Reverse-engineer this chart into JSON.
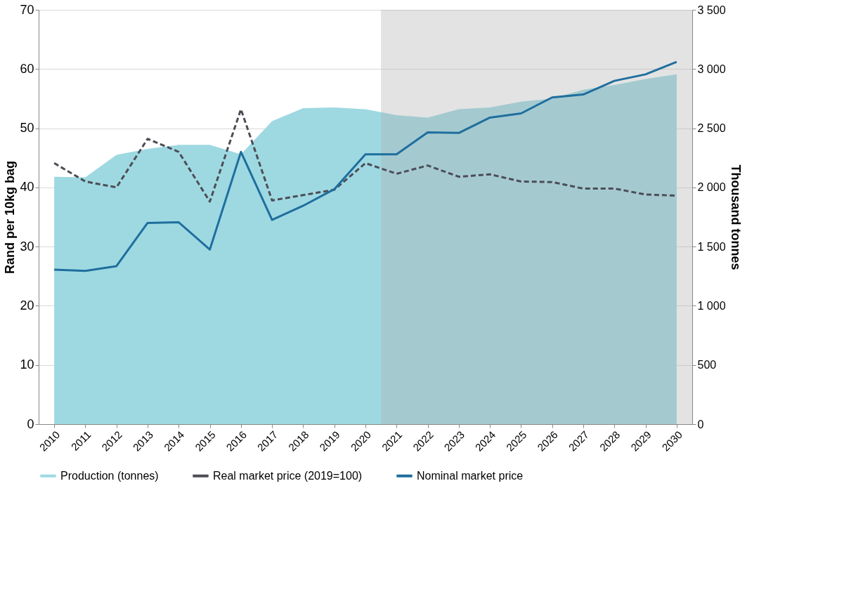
{
  "chart_data": {
    "type": "line",
    "x": [
      2010,
      2011,
      2012,
      2013,
      2014,
      2015,
      2016,
      2017,
      2018,
      2019,
      2020,
      2021,
      2022,
      2023,
      2024,
      2025,
      2026,
      2027,
      2028,
      2029,
      2030
    ],
    "xlim": [
      2009.5,
      2030.5
    ],
    "xticks": [
      2010,
      2011,
      2012,
      2013,
      2014,
      2015,
      2016,
      2017,
      2018,
      2019,
      2020,
      2021,
      2022,
      2023,
      2024,
      2025,
      2026,
      2027,
      2028,
      2029,
      2030
    ],
    "ylabel": "Rand per 10kg bag",
    "y2label": "Thousand tonnes",
    "ylim": [
      0,
      70
    ],
    "yticks": [
      0,
      10,
      20,
      30,
      40,
      50,
      60,
      70
    ],
    "y2lim": [
      0,
      3500
    ],
    "y2ticks": [
      0,
      500,
      {
        "value": 1000,
        "label": "1 000"
      },
      {
        "value": 1500,
        "label": "1 500"
      },
      {
        "value": 2000,
        "label": "2 000"
      },
      {
        "value": 2500,
        "label": "2 500"
      },
      {
        "value": 3000,
        "label": "3 000"
      },
      {
        "value": 3500,
        "label": "3 500"
      }
    ],
    "series": [
      {
        "name": "Production (tonnes)",
        "type": "area",
        "axis": "y2",
        "color": "#9ed9e2",
        "values": [
          2090,
          2085,
          2275,
          2325,
          2360,
          2360,
          2280,
          2560,
          2670,
          2675,
          2660,
          2610,
          2590,
          2660,
          2675,
          2725,
          2750,
          2825,
          2865,
          2915,
          2955
        ]
      },
      {
        "name": "Real market price (2019=100)",
        "line_style": "dashed",
        "color": "#4d4d57",
        "values": [
          44.1,
          41.0,
          40.0,
          48.2,
          46.0,
          37.6,
          53.2,
          37.8,
          38.7,
          39.6,
          44.1,
          42.3,
          43.7,
          41.8,
          42.2,
          41.0,
          40.9,
          39.8,
          39.8,
          38.8,
          38.6
        ]
      },
      {
        "name": "Nominal market price",
        "line_style": "solid",
        "color": "#1f6e9e",
        "values": [
          26.1,
          25.9,
          26.7,
          34.0,
          34.1,
          29.5,
          46.0,
          34.5,
          36.9,
          39.7,
          45.6,
          45.6,
          49.3,
          49.2,
          51.8,
          52.5,
          55.2,
          55.7,
          58.0,
          59.1,
          61.2
        ]
      }
    ],
    "bands": [
      {
        "axis": "x",
        "from": 2020.5,
        "to": 2030.5,
        "color": "#b0b0b0"
      }
    ],
    "grid": "y",
    "legend": "bottom",
    "marker": "none"
  }
}
